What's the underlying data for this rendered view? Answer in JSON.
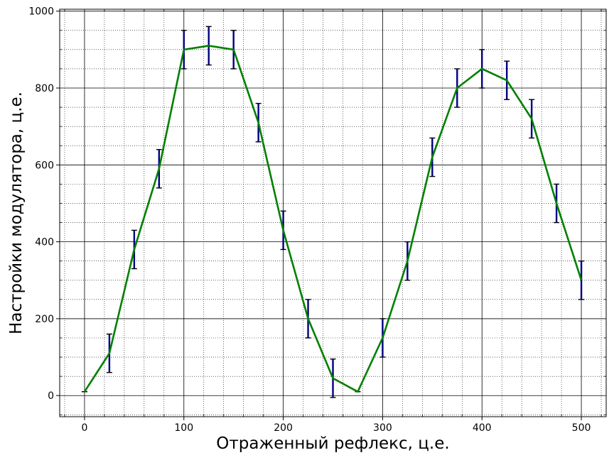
{
  "chart_data": {
    "type": "line",
    "title": "",
    "xlabel": "Отраженный рефлекс, ц.е.",
    "ylabel": "Настройки модулятора, ц.е.",
    "xlim": [
      -25,
      525
    ],
    "ylim": [
      -55,
      1005
    ],
    "x_major_ticks": [
      0,
      100,
      200,
      300,
      400,
      500
    ],
    "y_major_ticks": [
      0,
      200,
      400,
      600,
      800,
      1000
    ],
    "x_minor_step": 20,
    "y_minor_step": 50,
    "grid": true,
    "legend": "none",
    "series": [
      {
        "color": "#008000",
        "error_color": "#000080",
        "x": [
          0,
          25,
          50,
          75,
          100,
          125,
          150,
          175,
          200,
          225,
          250,
          275,
          300,
          325,
          350,
          375,
          400,
          425,
          450,
          475,
          500
        ],
        "y": [
          10,
          110,
          380,
          590,
          900,
          910,
          900,
          710,
          430,
          200,
          45,
          10,
          150,
          350,
          620,
          800,
          850,
          820,
          720,
          500,
          300
        ],
        "yerr": [
          0,
          50,
          50,
          50,
          50,
          50,
          50,
          50,
          50,
          50,
          50,
          0,
          50,
          50,
          50,
          50,
          50,
          50,
          50,
          50,
          50
        ]
      }
    ]
  }
}
